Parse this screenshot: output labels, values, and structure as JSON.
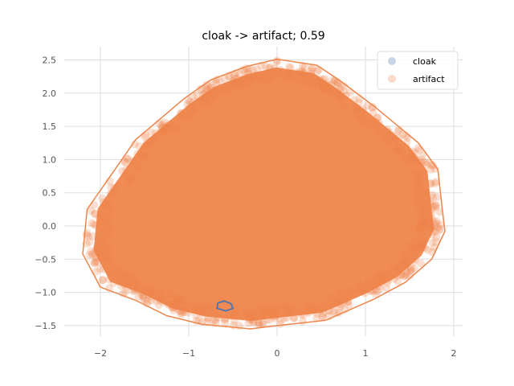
{
  "chart_data": {
    "type": "scatter",
    "title": "cloak -> artifact; 0.59",
    "xlim": [
      -2.4,
      2.1
    ],
    "ylim": [
      -1.65,
      2.7
    ],
    "x_ticks": [
      -2,
      -1,
      0,
      1,
      2
    ],
    "y_ticks": [
      -1.5,
      -1.0,
      -0.5,
      0.0,
      0.5,
      1.0,
      1.5,
      2.0,
      2.5
    ],
    "x_tick_labels": [
      "−2",
      "−1",
      "0",
      "1",
      "2"
    ],
    "y_tick_labels": [
      "−1.5",
      "−1.0",
      "−0.5",
      "0.0",
      "0.5",
      "1.0",
      "1.5",
      "2.0",
      "2.5"
    ],
    "grid": true,
    "legend_position": "top-right",
    "series": [
      {
        "name": "cloak",
        "color": "#4c72b0",
        "hull": [
          [
            -0.6,
            -1.13
          ],
          [
            -0.52,
            -1.17
          ],
          [
            -0.5,
            -1.24
          ],
          [
            -0.58,
            -1.28
          ],
          [
            -0.68,
            -1.24
          ],
          [
            -0.67,
            -1.16
          ]
        ]
      },
      {
        "name": "artifact",
        "color": "#ee854a",
        "hull": [
          [
            0.0,
            2.51
          ],
          [
            0.45,
            2.42
          ],
          [
            0.7,
            2.2
          ],
          [
            1.1,
            1.8
          ],
          [
            1.6,
            1.25
          ],
          [
            1.82,
            0.85
          ],
          [
            1.87,
            0.25
          ],
          [
            1.9,
            -0.08
          ],
          [
            1.75,
            -0.5
          ],
          [
            1.45,
            -0.85
          ],
          [
            1.1,
            -1.1
          ],
          [
            0.55,
            -1.42
          ],
          [
            0.0,
            -1.5
          ],
          [
            -0.3,
            -1.55
          ],
          [
            -0.85,
            -1.48
          ],
          [
            -1.25,
            -1.35
          ],
          [
            -1.6,
            -1.12
          ],
          [
            -2.0,
            -0.92
          ],
          [
            -2.2,
            -0.42
          ],
          [
            -2.15,
            0.25
          ],
          [
            -1.6,
            1.3
          ],
          [
            -1.05,
            1.92
          ],
          [
            -0.75,
            2.2
          ],
          [
            -0.35,
            2.4
          ]
        ]
      }
    ]
  }
}
